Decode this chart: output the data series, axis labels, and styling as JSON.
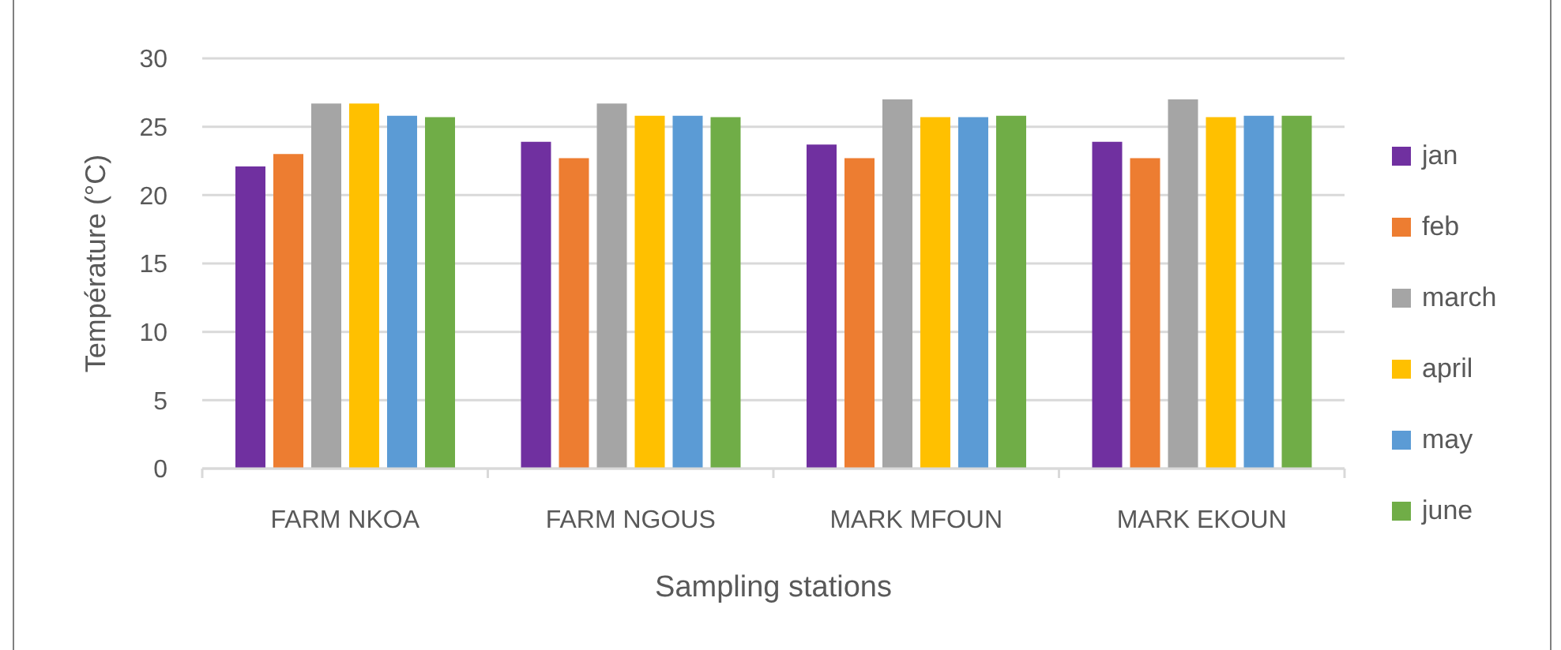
{
  "chart_data": {
    "type": "bar",
    "xlabel": "Sampling stations",
    "ylabel": "Température (°C)",
    "categories": [
      "FARM NKOA",
      "FARM NGOUS",
      "MARK MFOUN",
      "MARK EKOUN"
    ],
    "series": [
      {
        "name": "jan",
        "color": "#7030a0",
        "values": [
          22.1,
          23.9,
          23.7,
          23.9
        ]
      },
      {
        "name": "feb",
        "color": "#ed7d31",
        "values": [
          23.0,
          22.7,
          22.7,
          22.7
        ]
      },
      {
        "name": "march",
        "color": "#a5a5a5",
        "values": [
          26.7,
          26.7,
          27.0,
          27.0
        ]
      },
      {
        "name": "april",
        "color": "#ffc000",
        "values": [
          26.7,
          25.8,
          25.7,
          25.7
        ]
      },
      {
        "name": "may",
        "color": "#5b9bd5",
        "values": [
          25.8,
          25.8,
          25.7,
          25.8
        ]
      },
      {
        "name": "june",
        "color": "#70ad47",
        "values": [
          25.7,
          25.7,
          25.8,
          25.8
        ]
      }
    ],
    "ylim": [
      0,
      30
    ],
    "yticks": [
      0,
      5,
      10,
      15,
      20,
      25,
      30
    ],
    "grid": "y",
    "legend": "right"
  }
}
